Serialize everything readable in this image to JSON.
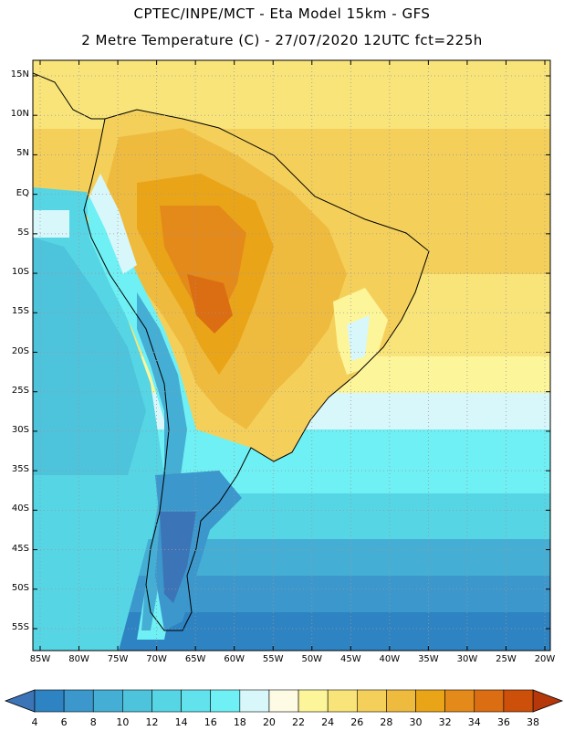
{
  "header": {
    "line1": "CPTEC/INPE/MCT -  Eta Model 15km - GFS",
    "line2": "2 Metre Temperature (C) - 27/07/2020 12UTC fct=225h"
  },
  "map": {
    "lat_labels": [
      "15N",
      "10N",
      "5N",
      "EQ",
      "5S",
      "10S",
      "15S",
      "20S",
      "25S",
      "30S",
      "35S",
      "40S",
      "45S",
      "50S",
      "55S"
    ],
    "lon_labels": [
      "85W",
      "80W",
      "75W",
      "70W",
      "65W",
      "60W",
      "55W",
      "50W",
      "45W",
      "40W",
      "35W",
      "30W",
      "25W",
      "20W"
    ],
    "lon_range_deg": [
      -85,
      -20
    ],
    "lat_range_deg": [
      -58,
      16
    ]
  },
  "colorbar": {
    "labels": [
      "4",
      "6",
      "8",
      "10",
      "12",
      "14",
      "16",
      "18",
      "20",
      "22",
      "24",
      "26",
      "28",
      "30",
      "32",
      "34",
      "36",
      "38"
    ],
    "colors": [
      "#3c74b8",
      "#2e83c2",
      "#3b97cc",
      "#45aed4",
      "#4dc3dc",
      "#56d5e4",
      "#61e2ec",
      "#6ff0f4",
      "#d8f7fb",
      "#fdfbe4",
      "#fdf59a",
      "#f8e479",
      "#f4d05b",
      "#eebb3f",
      "#eaa418",
      "#e38a1a",
      "#db6d12",
      "#cc4f0a",
      "#b6370a"
    ]
  },
  "icons": [
    "colorbar-left-arrow-icon",
    "colorbar-right-arrow-icon"
  ]
}
